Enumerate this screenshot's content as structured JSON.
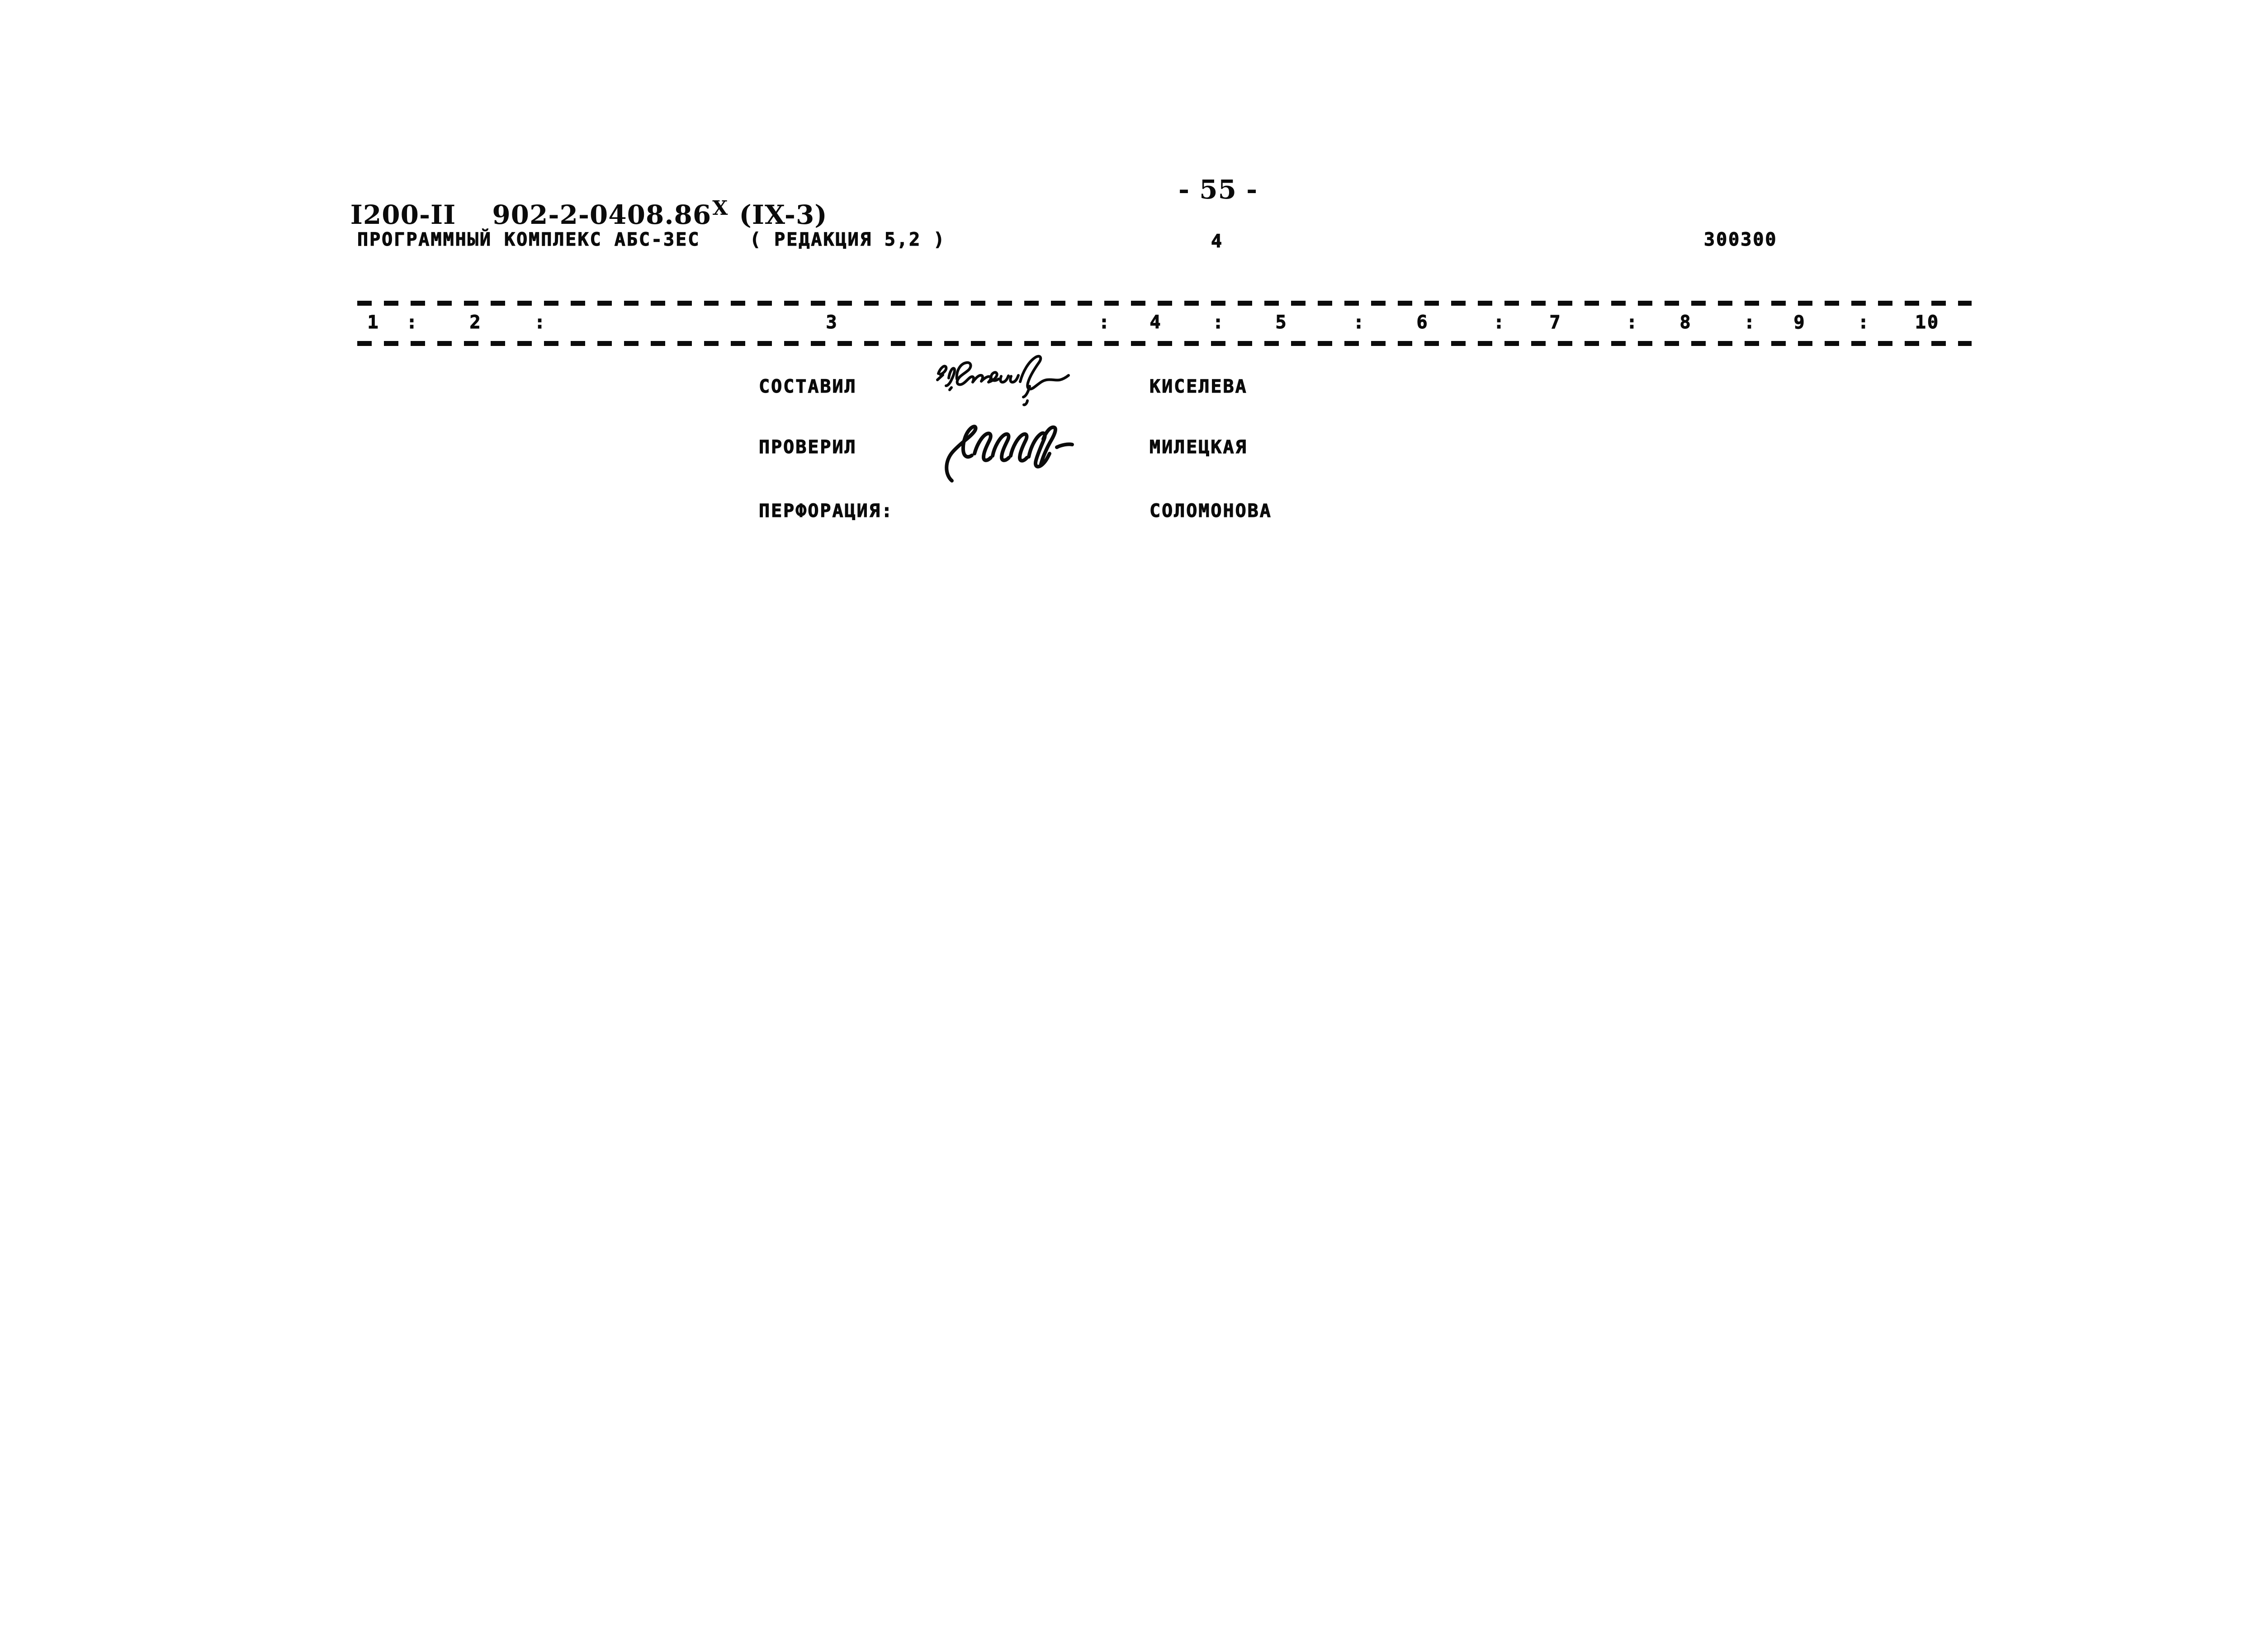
{
  "page": {
    "background": "#ffffff",
    "ink": "#0b0b0b"
  },
  "header": {
    "doc_series": "I200-II",
    "doc_code": "902-2-0408.86",
    "doc_code_superscript": "X",
    "doc_code_suffix": "(IX-3)",
    "page_number": "- 55 -"
  },
  "program_line": {
    "title": "ПРОГРАММНЫЙ КОМПЛЕКС АБС-3ЕС",
    "edition": "( РЕДАКЦИЯ 5,2 )",
    "sheet_number": "4",
    "form_code": "300300"
  },
  "ruler": {
    "labels": [
      "1",
      ":",
      "2",
      ":",
      "3",
      ":",
      "4",
      ":",
      "5",
      ":",
      "6",
      ":",
      "7",
      ":",
      "8",
      ":",
      "9",
      ":",
      "10"
    ]
  },
  "signatures": {
    "rows": [
      {
        "role": "СОСТАВИЛ",
        "name": "КИСЕЛЕВА"
      },
      {
        "role": "ПРОВЕРИЛ",
        "name": "МИЛЕЦКАЯ"
      },
      {
        "role": "ПЕРФОРАЦИЯ:",
        "name": "СОЛОМОНОВА"
      }
    ]
  }
}
